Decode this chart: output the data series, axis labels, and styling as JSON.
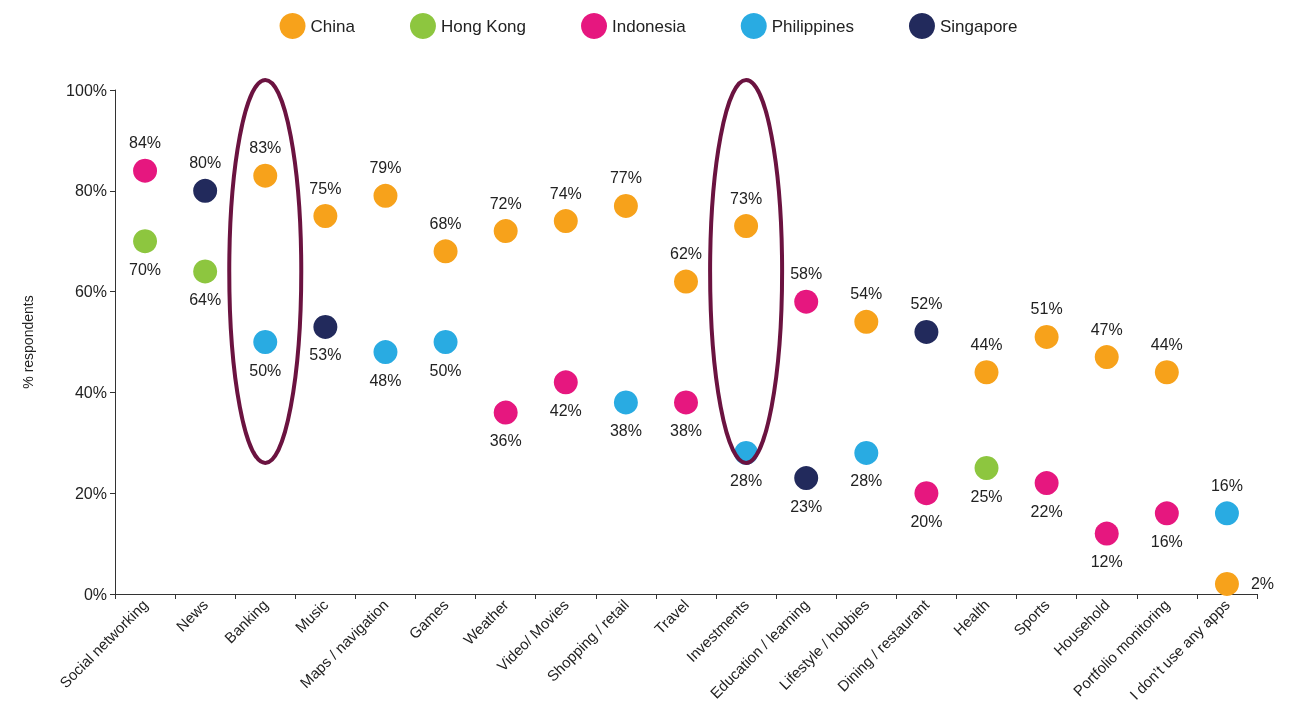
{
  "chart_data": {
    "type": "scatter",
    "ylabel": "% respondents",
    "categories": [
      "Social networking",
      "News",
      "Banking",
      "Music",
      "Maps / navigation",
      "Games",
      "Weather",
      "Video/ Movies",
      "Shopping / retail",
      "Travel",
      "Investments",
      "Education / learning",
      "Lifestyle / hobbies",
      "Dining / restaurant",
      "Health",
      "Sports",
      "Household",
      "Portfolio monitoring",
      "I don’t use any apps"
    ],
    "series": [
      {
        "name": "China",
        "color": "#f7a21b",
        "values": [
          null,
          null,
          83,
          75,
          79,
          68,
          72,
          74,
          77,
          62,
          73,
          null,
          54,
          null,
          44,
          51,
          47,
          44,
          2
        ],
        "value_labels": [
          null,
          null,
          "83%",
          "75%",
          "79%",
          "68%",
          "72%",
          "74%",
          "77%",
          "62%",
          "73%",
          null,
          "54%",
          null,
          "44%",
          "51%",
          "47%",
          "44%",
          "2%"
        ]
      },
      {
        "name": "Hong Kong",
        "color": "#8dc63f",
        "values": [
          70,
          64,
          null,
          null,
          null,
          null,
          null,
          null,
          null,
          null,
          null,
          null,
          null,
          null,
          25,
          null,
          null,
          null,
          null
        ],
        "value_labels": [
          "70%",
          "64%",
          null,
          null,
          null,
          null,
          null,
          null,
          null,
          null,
          null,
          null,
          null,
          null,
          "25%",
          null,
          null,
          null,
          null
        ]
      },
      {
        "name": "Indonesia",
        "color": "#e6177f",
        "values": [
          84,
          null,
          null,
          null,
          null,
          null,
          36,
          42,
          null,
          38,
          null,
          58,
          null,
          20,
          null,
          22,
          12,
          16,
          null
        ],
        "value_labels": [
          "84%",
          null,
          null,
          null,
          null,
          null,
          "36%",
          "42%",
          null,
          "38%",
          null,
          "58%",
          null,
          "20%",
          null,
          "22%",
          "12%",
          "16%",
          null
        ]
      },
      {
        "name": "Philippines",
        "color": "#29abe2",
        "values": [
          null,
          null,
          50,
          null,
          48,
          50,
          null,
          null,
          38,
          null,
          28,
          null,
          28,
          null,
          null,
          null,
          null,
          null,
          16
        ],
        "value_labels": [
          null,
          null,
          "50%",
          null,
          "48%",
          "50%",
          null,
          null,
          "38%",
          null,
          "28%",
          null,
          "28%",
          null,
          null,
          null,
          null,
          null,
          "16%"
        ]
      },
      {
        "name": "Singapore",
        "color": "#222a5c",
        "values": [
          null,
          80,
          null,
          53,
          null,
          null,
          null,
          null,
          null,
          null,
          null,
          23,
          null,
          52,
          null,
          null,
          null,
          null,
          null
        ],
        "value_labels": [
          null,
          "80%",
          null,
          "53%",
          null,
          null,
          null,
          null,
          null,
          null,
          null,
          "23%",
          null,
          "52%",
          null,
          null,
          null,
          null,
          null
        ]
      }
    ],
    "ylim": [
      0,
      100
    ],
    "yticks": [
      {
        "value": 0,
        "label": "0%"
      },
      {
        "value": 20,
        "label": "20%"
      },
      {
        "value": 40,
        "label": "40%"
      },
      {
        "value": 60,
        "label": "60%"
      },
      {
        "value": 80,
        "label": "80%"
      },
      {
        "value": 100,
        "label": "100%"
      }
    ],
    "legend": "top",
    "grid": false,
    "marker": "circle"
  }
}
